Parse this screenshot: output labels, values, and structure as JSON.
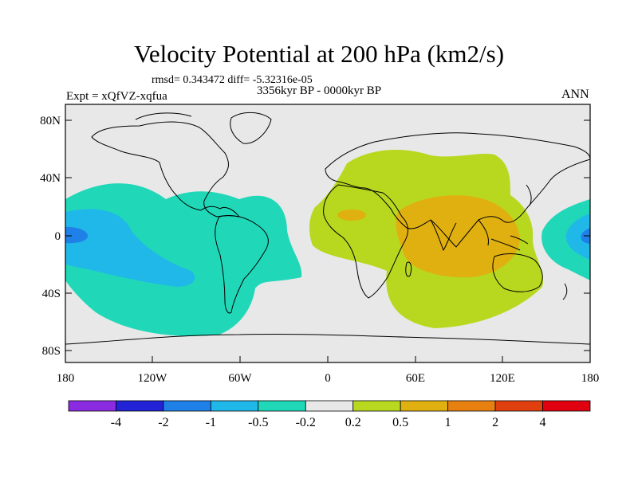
{
  "header": {
    "title": "Velocity Potential at 200 hPa (km2/s)",
    "stats": "rmsd= 0.343472 diff= -5.32316e-05",
    "experiment": "Expt = xQfVZ-xqfua",
    "period": "3356kyr BP - 0000kyr BP",
    "season": "ANN"
  },
  "axes": {
    "lat_labels": [
      "80N",
      "40N",
      "0",
      "40S",
      "80S"
    ],
    "lon_labels": [
      "180",
      "120W",
      "60W",
      "0",
      "60E",
      "120E",
      "180"
    ]
  },
  "map_regions": {
    "negative_pacific": "Velocity potential minimum over the eastern Pacific",
    "positive_indian_ocean": "Velocity potential maximum over the Indian Ocean / Maritime Continent"
  },
  "colorbar": {
    "colors": [
      "#8a2be2",
      "#2222d6",
      "#1f80e8",
      "#1fb8e8",
      "#20d8b8",
      "#e8e8e8",
      "#b8d820",
      "#e0b010",
      "#e88010",
      "#e04010",
      "#e00010"
    ],
    "labels": [
      "-4",
      "-2",
      "-1",
      "-0.5",
      "-0.2",
      "0.2",
      "0.5",
      "1",
      "2",
      "4"
    ]
  }
}
